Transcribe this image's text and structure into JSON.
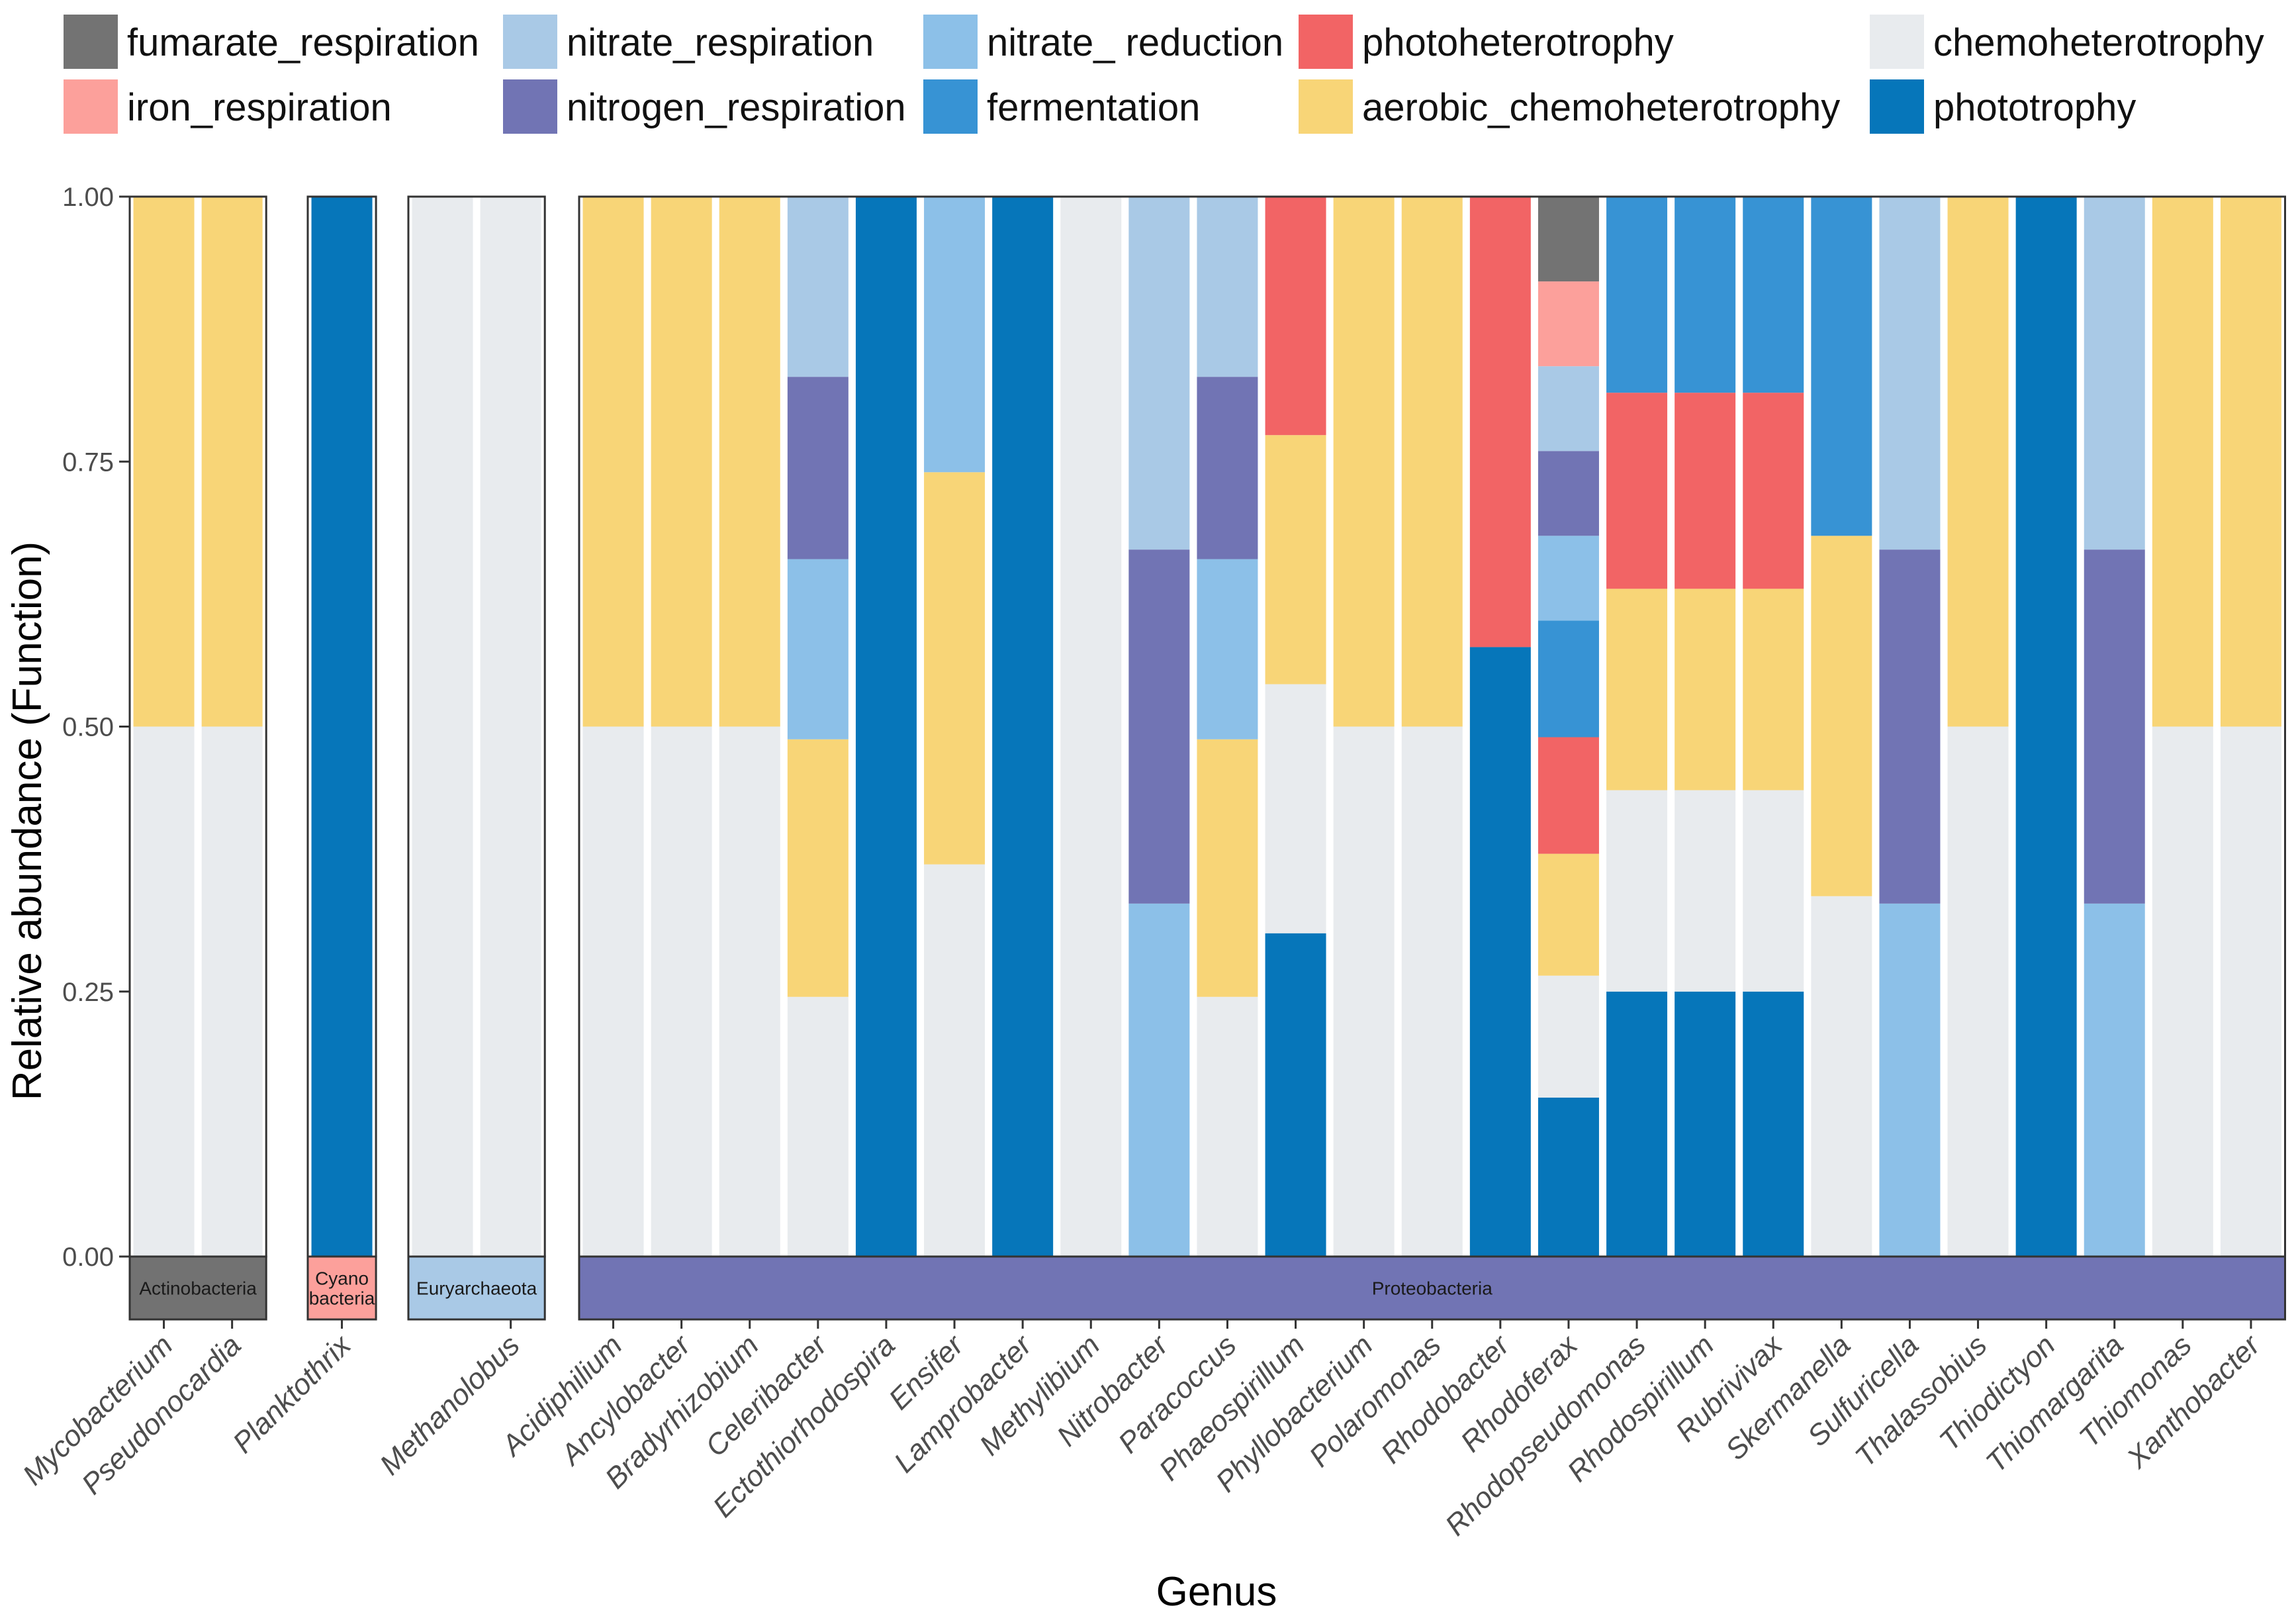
{
  "chart_data": {
    "type": "bar",
    "stacked": true,
    "xlabel": "Genus",
    "ylabel": "Relative abundance (Function)",
    "ylim": [
      0,
      1
    ],
    "yticks": [
      "0.00",
      "0.25",
      "0.50",
      "0.75",
      "1.00"
    ],
    "functions": [
      {
        "key": "fumarate_respiration",
        "label": "fumarate_respiration",
        "color": "#737373"
      },
      {
        "key": "iron_respiration",
        "label": "iron_respiration",
        "color": "#fca09b"
      },
      {
        "key": "nitrate_respiration",
        "label": "nitrate_respiration",
        "color": "#a9c9e6"
      },
      {
        "key": "nitrogen_respiration",
        "label": "nitrogen_respiration",
        "color": "#7174b4"
      },
      {
        "key": "nitrate_reduction",
        "label": "nitrate_ reduction",
        "color": "#8cc0e8"
      },
      {
        "key": "fermentation",
        "label": "fermentation",
        "color": "#3793d4"
      },
      {
        "key": "photoheterotrophy",
        "label": "photoheterotrophy",
        "color": "#f26465"
      },
      {
        "key": "aerobic_chemoheterotrophy",
        "label": "aerobic_chemoheterotrophy",
        "color": "#f8d577"
      },
      {
        "key": "chemoheterotrophy",
        "label": "chemoheterotrophy",
        "color": "#e8ebee"
      },
      {
        "key": "phototrophy",
        "label": "phototrophy",
        "color": "#0676ba"
      }
    ],
    "stack_order": [
      "phototrophy",
      "chemoheterotrophy",
      "aerobic_chemoheterotrophy",
      "photoheterotrophy",
      "fermentation",
      "nitrate_reduction",
      "nitrogen_respiration",
      "nitrate_respiration",
      "iron_respiration",
      "fumarate_respiration"
    ],
    "panels": [
      {
        "phylum": "Actinobacteria",
        "strip_lines": [
          "Actinobacteria"
        ],
        "strip_color": "#727272",
        "genera": [
          {
            "name": "Mycobacterium",
            "values": {
              "chemoheterotrophy": 0.5,
              "aerobic_chemoheterotrophy": 0.5
            }
          },
          {
            "name": "Pseudonocardia",
            "values": {
              "chemoheterotrophy": 0.5,
              "aerobic_chemoheterotrophy": 0.5
            }
          }
        ]
      },
      {
        "phylum": "Cyanobacteria",
        "strip_lines": [
          "Cyano",
          "bacteria"
        ],
        "strip_color": "#fca09b",
        "genera": [
          {
            "name": "Planktothrix",
            "values": {
              "phototrophy": 1.0
            }
          }
        ]
      },
      {
        "phylum": "Euryarchaeota",
        "strip_lines": [
          "Euryarchaeota"
        ],
        "strip_color": "#a9c9e6",
        "genera": [
          {
            "name": "",
            "values": {
              "chemoheterotrophy": 1.0
            }
          },
          {
            "name": "Methanolobus",
            "values": {
              "chemoheterotrophy": 1.0
            }
          }
        ]
      },
      {
        "phylum": "Proteobacteria",
        "strip_lines": [
          "Proteobacteria"
        ],
        "strip_color": "#7174b4",
        "genera": [
          {
            "name": "Acidiphilium",
            "values": {
              "chemoheterotrophy": 0.5,
              "aerobic_chemoheterotrophy": 0.5
            }
          },
          {
            "name": "Ancylobacter",
            "values": {
              "chemoheterotrophy": 0.5,
              "aerobic_chemoheterotrophy": 0.5
            }
          },
          {
            "name": "Bradyrhizobium",
            "values": {
              "chemoheterotrophy": 0.5,
              "aerobic_chemoheterotrophy": 0.5
            }
          },
          {
            "name": "Celeribacter",
            "values": {
              "chemoheterotrophy": 0.245,
              "aerobic_chemoheterotrophy": 0.243,
              "nitrate_reduction": 0.17,
              "nitrogen_respiration": 0.172,
              "nitrate_respiration": 0.17
            }
          },
          {
            "name": "Ectothiorhodospira",
            "values": {
              "phototrophy": 1.0
            }
          },
          {
            "name": "Ensifer",
            "values": {
              "chemoheterotrophy": 0.37,
              "aerobic_chemoheterotrophy": 0.37,
              "nitrate_reduction": 0.26
            }
          },
          {
            "name": "Lamprobacter",
            "values": {
              "phototrophy": 1.0
            }
          },
          {
            "name": "Methylibium",
            "values": {
              "chemoheterotrophy": 1.0
            }
          },
          {
            "name": "Nitrobacter",
            "values": {
              "nitrate_reduction": 0.333,
              "nitrogen_respiration": 0.334,
              "nitrate_respiration": 0.333
            }
          },
          {
            "name": "Paracoccus",
            "values": {
              "chemoheterotrophy": 0.245,
              "aerobic_chemoheterotrophy": 0.243,
              "nitrate_reduction": 0.17,
              "nitrogen_respiration": 0.172,
              "nitrate_respiration": 0.17
            }
          },
          {
            "name": "Phaeospirillum",
            "values": {
              "phototrophy": 0.305,
              "chemoheterotrophy": 0.235,
              "aerobic_chemoheterotrophy": 0.235,
              "photoheterotrophy": 0.225
            }
          },
          {
            "name": "Phyllobacterium",
            "values": {
              "chemoheterotrophy": 0.5,
              "aerobic_chemoheterotrophy": 0.5
            }
          },
          {
            "name": "Polaromonas",
            "values": {
              "chemoheterotrophy": 0.5,
              "aerobic_chemoheterotrophy": 0.5
            }
          },
          {
            "name": "Rhodobacter",
            "values": {
              "phototrophy": 0.575,
              "photoheterotrophy": 0.425
            }
          },
          {
            "name": "Rhodoferax",
            "values": {
              "phototrophy": 0.15,
              "chemoheterotrophy": 0.115,
              "aerobic_chemoheterotrophy": 0.115,
              "photoheterotrophy": 0.11,
              "fermentation": 0.11,
              "nitrate_reduction": 0.08,
              "nitrogen_respiration": 0.08,
              "nitrate_respiration": 0.08,
              "iron_respiration": 0.08,
              "fumarate_respiration": 0.08
            }
          },
          {
            "name": "Rhodopseudomonas",
            "values": {
              "phototrophy": 0.25,
              "chemoheterotrophy": 0.19,
              "aerobic_chemoheterotrophy": 0.19,
              "photoheterotrophy": 0.185,
              "fermentation": 0.185
            }
          },
          {
            "name": "Rhodospirillum",
            "values": {
              "phototrophy": 0.25,
              "chemoheterotrophy": 0.19,
              "aerobic_chemoheterotrophy": 0.19,
              "photoheterotrophy": 0.185,
              "fermentation": 0.185
            }
          },
          {
            "name": "Rubrivivax",
            "values": {
              "phototrophy": 0.25,
              "chemoheterotrophy": 0.19,
              "aerobic_chemoheterotrophy": 0.19,
              "photoheterotrophy": 0.185,
              "fermentation": 0.185
            }
          },
          {
            "name": "Skermanella",
            "values": {
              "chemoheterotrophy": 0.34,
              "aerobic_chemoheterotrophy": 0.34,
              "fermentation": 0.32
            }
          },
          {
            "name": "Sulfuricella",
            "values": {
              "nitrate_reduction": 0.333,
              "nitrogen_respiration": 0.334,
              "nitrate_respiration": 0.333
            }
          },
          {
            "name": "Thalassobius",
            "values": {
              "chemoheterotrophy": 0.5,
              "aerobic_chemoheterotrophy": 0.5
            }
          },
          {
            "name": "Thiodictyon",
            "values": {
              "phototrophy": 1.0
            }
          },
          {
            "name": "Thiomargarita",
            "values": {
              "nitrate_reduction": 0.333,
              "nitrogen_respiration": 0.334,
              "nitrate_respiration": 0.333
            }
          },
          {
            "name": "Thiomonas",
            "values": {
              "chemoheterotrophy": 0.5,
              "aerobic_chemoheterotrophy": 0.5
            }
          },
          {
            "name": "Xanthobacter",
            "values": {
              "chemoheterotrophy": 0.5,
              "aerobic_chemoheterotrophy": 0.5
            }
          }
        ]
      }
    ]
  }
}
